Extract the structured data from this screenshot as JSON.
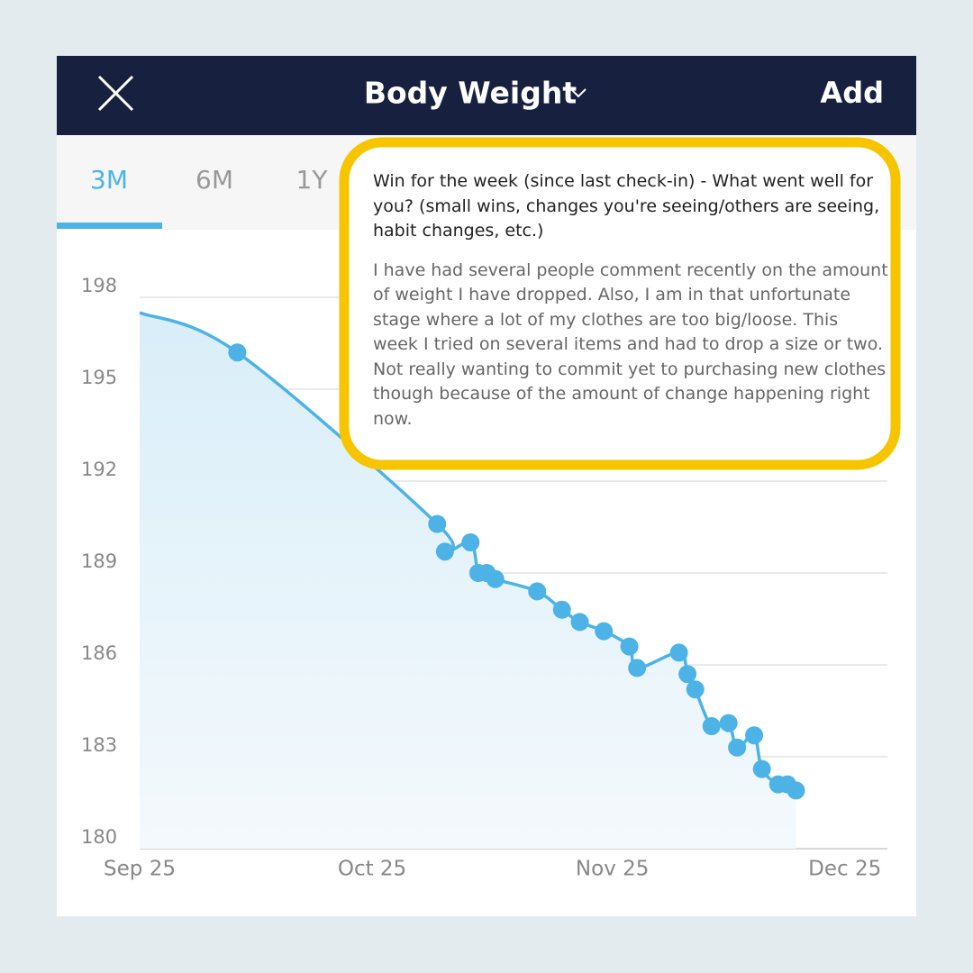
{
  "header": {
    "title": "Body Weight",
    "action": "Add"
  },
  "tabs": [
    "3M",
    "6M",
    "1Y"
  ],
  "chart_data": {
    "type": "line",
    "x": [
      0,
      12.6,
      38.4,
      39.4,
      42.7,
      43.7,
      44.8,
      45.9,
      51.3,
      54.5,
      56.8,
      59.9,
      63.2,
      64.2,
      69.6,
      70.7,
      71.7,
      73.8,
      76.0,
      77.1,
      79.3,
      80.3,
      82.4,
      83.6,
      84.7
    ],
    "series": [
      {
        "color": "#4db3e6",
        "values": [
          197.5,
          196.2,
          190.6,
          189.7,
          190.0,
          189.0,
          189.0,
          188.8,
          188.4,
          187.8,
          187.4,
          187.1,
          186.6,
          185.9,
          186.4,
          185.7,
          185.2,
          184.0,
          184.1,
          183.3,
          183.7,
          182.6,
          182.1,
          182.1,
          181.9
        ]
      }
    ],
    "xlim": [
      0,
      96.5
    ],
    "ylim": [
      180,
      198
    ],
    "xticks": [
      {
        "value": 0,
        "label": "Sep 25"
      },
      {
        "value": 30,
        "label": "Oct 25"
      },
      {
        "value": 61,
        "label": "Nov 25"
      },
      {
        "value": 91,
        "label": "Dec 25"
      }
    ],
    "yticks": [
      180,
      183,
      186,
      189,
      192,
      195,
      198
    ],
    "grid": true
  },
  "note": {
    "question": "Win for the week (since last check-in) - What went well for you? (small wins, changes you're seeing/others are seeing, habit changes, etc.)",
    "answer": "I have had several people comment recently on the amount of weight I have dropped. Also, I am in that unfortunate stage where a lot of my clothes are too big/loose. This week I tried on several items and had to drop a size or two. Not really wanting to commit yet to purchasing new clothes though because of the amount of change happening right now."
  }
}
